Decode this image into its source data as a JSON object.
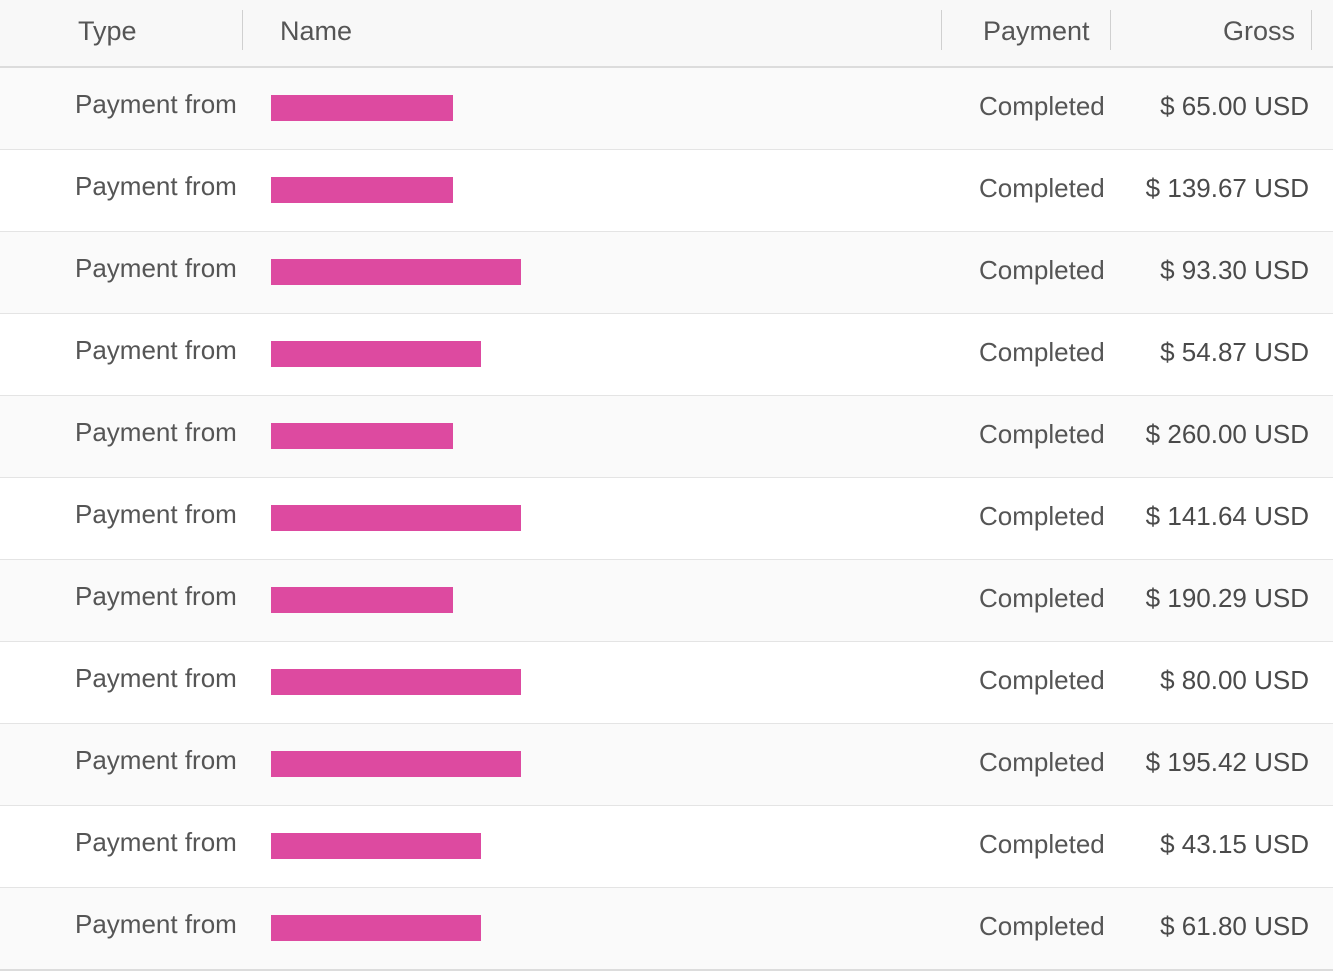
{
  "header": {
    "type": "Type",
    "name": "Name",
    "payment": "Payment",
    "gross": "Gross"
  },
  "rows": [
    {
      "type": "Payment from",
      "status": "Completed",
      "gross": "$ 65.00 USD",
      "redact_width": 182
    },
    {
      "type": "Payment from",
      "status": "Completed",
      "gross": "$ 139.67 USD",
      "redact_width": 182
    },
    {
      "type": "Payment from",
      "status": "Completed",
      "gross": "$ 93.30 USD",
      "redact_width": 250
    },
    {
      "type": "Payment from",
      "status": "Completed",
      "gross": "$ 54.87 USD",
      "redact_width": 210
    },
    {
      "type": "Payment from",
      "status": "Completed",
      "gross": "$ 260.00 USD",
      "redact_width": 182
    },
    {
      "type": "Payment from",
      "status": "Completed",
      "gross": "$ 141.64 USD",
      "redact_width": 250
    },
    {
      "type": "Payment from",
      "status": "Completed",
      "gross": "$ 190.29 USD",
      "redact_width": 182
    },
    {
      "type": "Payment from",
      "status": "Completed",
      "gross": "$ 80.00 USD",
      "redact_width": 250
    },
    {
      "type": "Payment from",
      "status": "Completed",
      "gross": "$ 195.42 USD",
      "redact_width": 250
    },
    {
      "type": "Payment from",
      "status": "Completed",
      "gross": "$ 43.15 USD",
      "redact_width": 210
    },
    {
      "type": "Payment from",
      "status": "Completed",
      "gross": "$ 61.80 USD",
      "redact_width": 210
    }
  ],
  "colors": {
    "redaction": "#dd4aa0",
    "header_bg": "#f8f8f8",
    "text": "#555555"
  }
}
